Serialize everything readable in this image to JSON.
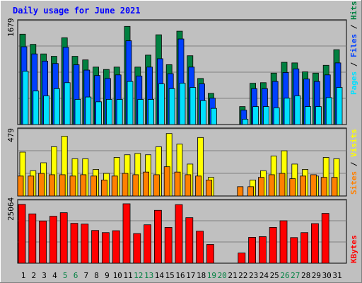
{
  "title": "Daily usage for June 2021",
  "colors": {
    "background": "#c0c0c0",
    "panel_bg": "#c0c0c0",
    "title": "#0000ff",
    "hits": "#008040",
    "files": "#0040ff",
    "pages": "#00e0ff",
    "visits": "#ffff00",
    "sites": "#ff8000",
    "kbytes": "#ff0000",
    "weekend_label": "#008040",
    "weekday_label": "#000000"
  },
  "chart_data": [
    {
      "type": "bar",
      "name": "hits-files-pages",
      "ymax_label": "1679",
      "ylim": [
        0,
        1679
      ],
      "right_label": [
        "Pages",
        "Files",
        "Hits"
      ],
      "x": [
        1,
        2,
        3,
        4,
        5,
        6,
        7,
        8,
        9,
        10,
        11,
        12,
        13,
        14,
        15,
        16,
        17,
        18,
        19,
        20,
        21,
        22,
        23,
        24,
        25,
        26,
        27,
        28,
        29,
        30,
        31
      ],
      "series": [
        {
          "name": "Hits",
          "values": [
            1510,
            1340,
            1180,
            1140,
            1450,
            1140,
            1080,
            960,
            920,
            960,
            1640,
            960,
            1160,
            1500,
            1000,
            1560,
            1150,
            770,
            520,
            0,
            0,
            300,
            690,
            700,
            860,
            1040,
            1030,
            880,
            860,
            990,
            1250
          ]
        },
        {
          "name": "Files",
          "values": [
            1300,
            1180,
            1060,
            1020,
            1290,
            1000,
            910,
            820,
            770,
            830,
            1400,
            810,
            960,
            1100,
            850,
            1430,
            960,
            680,
            440,
            0,
            0,
            240,
            600,
            600,
            720,
            870,
            930,
            760,
            720,
            830,
            1030
          ]
        },
        {
          "name": "Pages",
          "values": [
            890,
            560,
            480,
            600,
            700,
            420,
            460,
            380,
            420,
            420,
            720,
            420,
            420,
            680,
            600,
            690,
            620,
            400,
            270,
            0,
            0,
            90,
            300,
            300,
            280,
            440,
            480,
            300,
            300,
            450,
            620
          ]
        }
      ]
    },
    {
      "type": "bar",
      "name": "visits-sites",
      "ymax_label": "479",
      "ylim": [
        0,
        479
      ],
      "right_label": [
        "Sites",
        "Visits"
      ],
      "x": [
        1,
        2,
        3,
        4,
        5,
        6,
        7,
        8,
        9,
        10,
        11,
        12,
        13,
        14,
        15,
        16,
        17,
        18,
        19,
        20,
        21,
        22,
        23,
        24,
        25,
        26,
        27,
        28,
        29,
        30,
        31
      ],
      "series": [
        {
          "name": "Visits",
          "values": [
            330,
            190,
            250,
            370,
            450,
            280,
            280,
            200,
            170,
            290,
            310,
            320,
            310,
            370,
            470,
            390,
            240,
            440,
            140,
            0,
            0,
            0,
            120,
            190,
            300,
            340,
            240,
            200,
            150,
            290,
            280
          ]
        },
        {
          "name": "Sites",
          "values": [
            150,
            150,
            170,
            160,
            160,
            150,
            160,
            150,
            120,
            150,
            170,
            160,
            180,
            160,
            220,
            180,
            160,
            150,
            120,
            0,
            0,
            70,
            70,
            140,
            160,
            170,
            130,
            150,
            160,
            140,
            140
          ]
        }
      ]
    },
    {
      "type": "bar",
      "name": "kbytes",
      "ymax_label": "25064",
      "ylim": [
        0,
        25064
      ],
      "right_label": [
        "KBytes"
      ],
      "x": [
        1,
        2,
        3,
        4,
        5,
        6,
        7,
        8,
        9,
        10,
        11,
        12,
        13,
        14,
        15,
        16,
        17,
        18,
        19,
        20,
        21,
        22,
        23,
        24,
        25,
        26,
        27,
        28,
        29,
        30,
        31
      ],
      "series": [
        {
          "name": "KBytes",
          "values": [
            24800,
            20800,
            17800,
            19800,
            21300,
            16800,
            16500,
            13800,
            12900,
            13700,
            25064,
            12500,
            16200,
            22300,
            15100,
            24700,
            19200,
            13500,
            7900,
            0,
            0,
            4300,
            10900,
            11200,
            15100,
            17900,
            10800,
            12900,
            16700,
            21000,
            0
          ]
        }
      ]
    }
  ],
  "x_labels": [
    "1",
    "2",
    "3",
    "4",
    "5",
    "6",
    "7",
    "8",
    "9",
    "10",
    "11",
    "12",
    "13",
    "14",
    "15",
    "16",
    "17",
    "18",
    "19",
    "20",
    "21",
    "22",
    "23",
    "24",
    "25",
    "26",
    "27",
    "28",
    "29",
    "30",
    "31"
  ],
  "weekend_days": [
    5,
    6,
    12,
    13,
    19,
    20,
    26,
    27
  ]
}
